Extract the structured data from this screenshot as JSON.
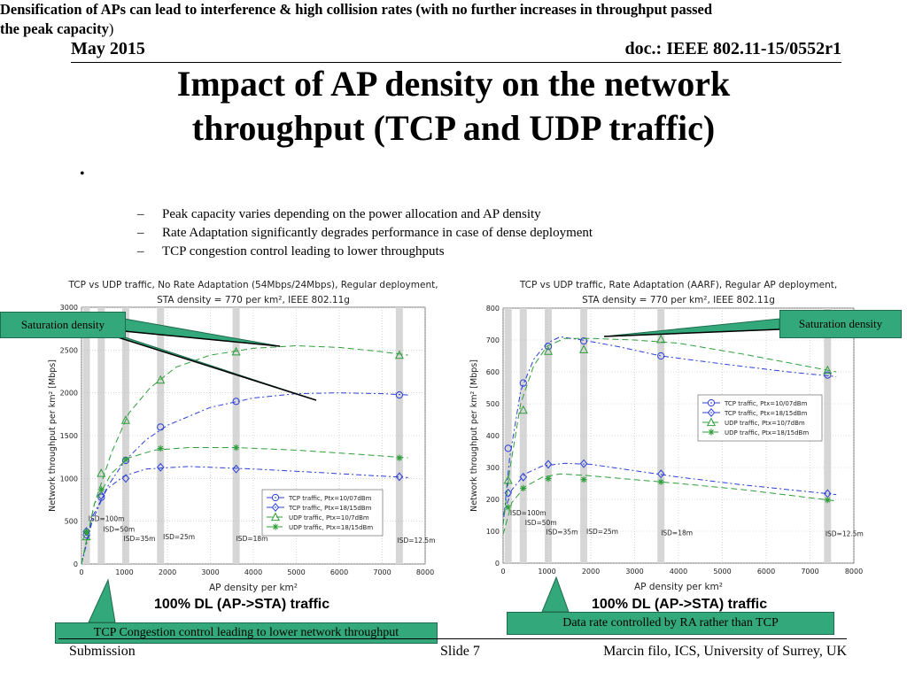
{
  "header": {
    "date": "May 2015",
    "doc": "doc.: IEEE 802.11-15/0552r1"
  },
  "title": {
    "line1": "Impact of AP density on the network",
    "line2": "throughput (TCP and UDP traffic)"
  },
  "bullets": {
    "main_bold": "Densification of APs can lead to interference & high collision rates (with no further increases in throughput passed the peak capacity",
    "main_end": ")",
    "mark": "•",
    "subs": [
      "Peak capacity varies depending on the power allocation and AP density",
      "Rate Adaptation significantly degrades performance in case of dense deployment",
      "TCP congestion control leading to lower throughputs"
    ],
    "dash": "–"
  },
  "callouts": {
    "left": "Saturation density",
    "right": "Saturation density",
    "bottom_left": "TCP Congestion control leading to lower network throughput",
    "bottom_right": "Data rate controlled by RA rather than TCP"
  },
  "plot_labels": {
    "left": "100% DL (AP->STA) traffic",
    "right": "100% DL (AP->STA) traffic"
  },
  "footer": {
    "submission": "Submission",
    "slide": "Slide 7",
    "author": "Marcin filo, ICS, University of Surrey, UK"
  },
  "chart_data": [
    {
      "type": "line",
      "title_line1": "TCP vs UDP traffic, No Rate Adaptation (54Mbps/24Mbps), Regular deployment,",
      "title_line2": "STA density = 770 per km², IEEE 802.11g",
      "xlabel": "AP density per km²",
      "ylabel": "Network throughput per km² [Mbps]",
      "xlim": [
        0,
        8000
      ],
      "ylim": [
        0,
        3000
      ],
      "xticks": [
        0,
        1000,
        2000,
        3000,
        4000,
        5000,
        6000,
        7000,
        8000
      ],
      "yticks": [
        0,
        500,
        1000,
        1500,
        2000,
        2500,
        3000
      ],
      "grid": true,
      "legend_position": "lower-right",
      "isd_markers": [
        {
          "x": 115,
          "label": "ISD=100m",
          "text_y": 490
        },
        {
          "x": 460,
          "label": "ISD=50m",
          "text_y": 380
        },
        {
          "x": 1840,
          "label": "ISD=35m",
          "text_y": 280
        },
        {
          "x": 3600,
          "label": "ISD=25m",
          "text_y": 280
        },
        {
          "x": 7400,
          "label": "ISD=18m",
          "text_y": 260
        },
        {
          "x": 7400,
          "label": "ISD=12.5m",
          "text_y": 260
        }
      ],
      "isd_bars_x": [
        115,
        460,
        1030,
        1840,
        3600,
        7400
      ],
      "isd_text": [
        {
          "label": "ISD=100m",
          "x": 160,
          "y": 500
        },
        {
          "label": "ISD=50m",
          "x": 500,
          "y": 380
        },
        {
          "label": "ISD=35m",
          "x": 980,
          "y": 270
        },
        {
          "label": "ISD=25m",
          "x": 1900,
          "y": 290
        },
        {
          "label": "ISD=18m",
          "x": 3600,
          "y": 270
        },
        {
          "label": "ISD=12.5m",
          "x": 7350,
          "y": 250
        }
      ],
      "series": [
        {
          "name": "TCP traffic, Ptx=10/07dBm",
          "marker": "circle",
          "color": "#2b3fd6",
          "dash": "6,3,2,3",
          "x": [
            115,
            460,
            1030,
            1840,
            3600,
            7400
          ],
          "y": [
            340,
            780,
            1210,
            1600,
            1900,
            1975
          ],
          "fit": [
            [
              0,
              0
            ],
            [
              250,
              500
            ],
            [
              600,
              900
            ],
            [
              1000,
              1200
            ],
            [
              1500,
              1450
            ],
            [
              2000,
              1620
            ],
            [
              3000,
              1830
            ],
            [
              4000,
              1940
            ],
            [
              5000,
              1990
            ],
            [
              6000,
              2000
            ],
            [
              7000,
              1990
            ],
            [
              7600,
              1975
            ]
          ]
        },
        {
          "name": "TCP traffic, Ptx=18/15dBm",
          "marker": "diamond",
          "color": "#2b3fd6",
          "dash": "6,3,2,3",
          "x": [
            115,
            460,
            1030,
            1840,
            3600,
            7400
          ],
          "y": [
            380,
            800,
            1000,
            1130,
            1110,
            1020
          ],
          "fit": [
            [
              0,
              0
            ],
            [
              250,
              550
            ],
            [
              600,
              880
            ],
            [
              1000,
              1030
            ],
            [
              1500,
              1110
            ],
            [
              2500,
              1140
            ],
            [
              4000,
              1110
            ],
            [
              5500,
              1070
            ],
            [
              7600,
              1010
            ]
          ]
        },
        {
          "name": "UDP traffic, Ptx=10/7dBm",
          "marker": "triangle",
          "color": "#2e9e3a",
          "dash": "7,4",
          "x": [
            115,
            460,
            1030,
            1840,
            3600,
            7400
          ],
          "y": [
            320,
            1060,
            1680,
            2150,
            2480,
            2440
          ],
          "fit": [
            [
              0,
              0
            ],
            [
              300,
              700
            ],
            [
              700,
              1300
            ],
            [
              1100,
              1760
            ],
            [
              1600,
              2060
            ],
            [
              2200,
              2300
            ],
            [
              3000,
              2440
            ],
            [
              4000,
              2520
            ],
            [
              5000,
              2550
            ],
            [
              6000,
              2530
            ],
            [
              7000,
              2480
            ],
            [
              7600,
              2440
            ]
          ]
        },
        {
          "name": "UDP traffic, Ptx=18/15dBm",
          "marker": "star",
          "color": "#2e9e3a",
          "dash": "7,4",
          "x": [
            115,
            460,
            1030,
            1840,
            3600,
            7400
          ],
          "y": [
            380,
            870,
            1220,
            1350,
            1360,
            1240
          ],
          "fit": [
            [
              0,
              0
            ],
            [
              300,
              700
            ],
            [
              700,
              1060
            ],
            [
              1100,
              1240
            ],
            [
              1700,
              1330
            ],
            [
              2500,
              1360
            ],
            [
              3600,
              1360
            ],
            [
              5000,
              1330
            ],
            [
              6500,
              1280
            ],
            [
              7600,
              1240
            ]
          ]
        }
      ]
    },
    {
      "type": "line",
      "title_line1": "TCP vs UDP traffic, Rate Adaptation (AARF), Regular AP deployment,",
      "title_line2": "STA density = 770 per km², IEEE 802.11g",
      "xlabel": "AP density per km²",
      "ylabel": "Network throughput per km² [Mbps]",
      "xlim": [
        0,
        8000
      ],
      "ylim": [
        0,
        800
      ],
      "xticks": [
        0,
        1000,
        2000,
        3000,
        4000,
        5000,
        6000,
        7000,
        8000
      ],
      "yticks": [
        0,
        100,
        200,
        300,
        400,
        500,
        600,
        700,
        800
      ],
      "grid": true,
      "legend_position": "center-right",
      "isd_bars_x": [
        115,
        460,
        1030,
        1840,
        3600,
        7400
      ],
      "isd_text": [
        {
          "label": "ISD=100m",
          "x": 160,
          "y": 150
        },
        {
          "label": "ISD=50m",
          "x": 500,
          "y": 120
        },
        {
          "label": "ISD=35m",
          "x": 980,
          "y": 90
        },
        {
          "label": "ISD=25m",
          "x": 1900,
          "y": 92
        },
        {
          "label": "ISD=18m",
          "x": 3600,
          "y": 88
        },
        {
          "label": "ISD=12.5m",
          "x": 7350,
          "y": 85
        }
      ],
      "series": [
        {
          "name": "TCP traffic, Ptx=10/07dBm",
          "marker": "circle",
          "color": "#2b3fd6",
          "dash": "6,3,2,3",
          "x": [
            115,
            460,
            1030,
            1840,
            3600,
            7400
          ],
          "y": [
            360,
            565,
            680,
            697,
            650,
            590
          ],
          "fit": [
            [
              0,
              120
            ],
            [
              150,
              330
            ],
            [
              400,
              540
            ],
            [
              700,
              640
            ],
            [
              1000,
              690
            ],
            [
              1300,
              710
            ],
            [
              1800,
              700
            ],
            [
              2600,
              680
            ],
            [
              3600,
              650
            ],
            [
              5000,
              625
            ],
            [
              6500,
              600
            ],
            [
              7600,
              585
            ]
          ]
        },
        {
          "name": "TCP traffic, Ptx=18/15dBm",
          "marker": "diamond",
          "color": "#2b3fd6",
          "dash": "6,3,2,3",
          "x": [
            115,
            460,
            1030,
            1840,
            3600,
            7400
          ],
          "y": [
            220,
            270,
            310,
            312,
            280,
            218
          ],
          "fit": [
            [
              0,
              150
            ],
            [
              200,
              230
            ],
            [
              500,
              280
            ],
            [
              900,
              305
            ],
            [
              1400,
              313
            ],
            [
              2000,
              310
            ],
            [
              3000,
              290
            ],
            [
              4000,
              270
            ],
            [
              5500,
              245
            ],
            [
              7600,
              215
            ]
          ]
        },
        {
          "name": "UDP traffic, Ptx=10/7dBm",
          "marker": "triangle",
          "color": "#2e9e3a",
          "dash": "7,4",
          "x": [
            115,
            460,
            1030,
            1840,
            3600,
            7400
          ],
          "y": [
            260,
            480,
            665,
            670,
            702,
            605
          ],
          "fit": [
            [
              0,
              120
            ],
            [
              150,
              290
            ],
            [
              400,
              500
            ],
            [
              700,
              620
            ],
            [
              1000,
              680
            ],
            [
              1400,
              705
            ],
            [
              2000,
              705
            ],
            [
              3000,
              700
            ],
            [
              4000,
              690
            ],
            [
              5500,
              655
            ],
            [
              7600,
              600
            ]
          ]
        },
        {
          "name": "UDP traffic, Ptx=18/15dBm",
          "marker": "star",
          "color": "#2e9e3a",
          "dash": "7,4",
          "x": [
            115,
            460,
            1030,
            1840,
            3600,
            7400
          ],
          "y": [
            175,
            235,
            265,
            262,
            255,
            198
          ],
          "fit": [
            [
              0,
              90
            ],
            [
              200,
              190
            ],
            [
              500,
              240
            ],
            [
              900,
              270
            ],
            [
              1300,
              280
            ],
            [
              1900,
              275
            ],
            [
              3000,
              262
            ],
            [
              4000,
              250
            ],
            [
              5500,
              230
            ],
            [
              7600,
              195
            ]
          ]
        }
      ]
    }
  ]
}
